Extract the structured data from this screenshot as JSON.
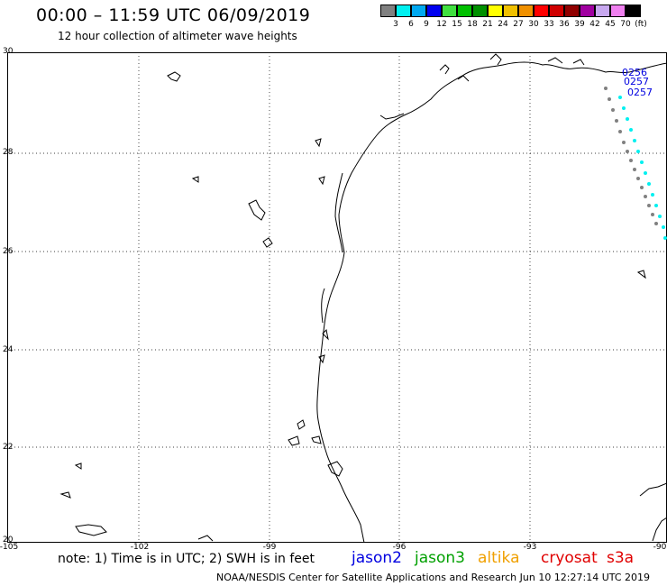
{
  "header": {
    "title": "00:00 – 11:59 UTC 06/09/2019",
    "subtitle": "12 hour collection of altimeter wave heights"
  },
  "colorbar": {
    "swatches": [
      "#808080",
      "#00f0f0",
      "#00a8f0",
      "#0000f0",
      "#40e040",
      "#00c000",
      "#009000",
      "#ffff00",
      "#f0c000",
      "#f09000",
      "#ff0000",
      "#d00000",
      "#900000",
      "#a000a0",
      "#c8a8f0",
      "#f080f0",
      "#000000"
    ],
    "labels": [
      "3",
      "6",
      "9",
      "12",
      "15",
      "18",
      "21",
      "24",
      "27",
      "30",
      "33",
      "36",
      "39",
      "42",
      "45",
      "70",
      "(ft)"
    ]
  },
  "map": {
    "lat_labels": [
      "30",
      "28",
      "26",
      "24",
      "22",
      "20"
    ],
    "lon_labels": [
      "-105",
      "-102",
      "-99",
      "-96",
      "-93",
      "-90"
    ],
    "track_labels": [
      "0256",
      "0257",
      "0257"
    ]
  },
  "notes": {
    "note": "note:  1) Time is in UTC;  2) SWH is in feet",
    "satellites": [
      {
        "name": "jason2",
        "color": "#0000e0"
      },
      {
        "name": "jason3",
        "color": "#00a000"
      },
      {
        "name": "altika",
        "color": "#f0a000"
      },
      {
        "name": "cryosat",
        "color": "#e00000"
      },
      {
        "name": "s3a",
        "color": "#e00000"
      }
    ]
  },
  "footer": {
    "credit": "NOAA/NESDIS Center for Satellite Applications and Research    Jun 10 12:27:14 UTC 2019"
  }
}
